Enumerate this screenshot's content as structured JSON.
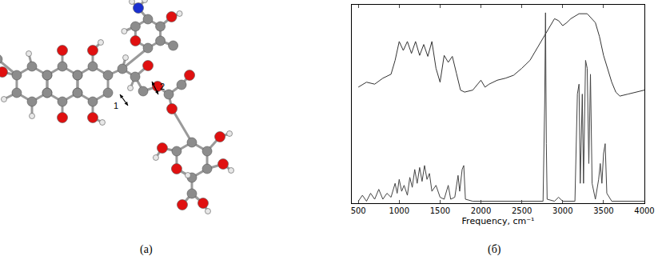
{
  "chart_data": {
    "type": "line",
    "x_label": "Frequency, cm⁻¹",
    "xlim": [
      420,
      4000
    ],
    "xticks": [
      500,
      1000,
      1500,
      2000,
      2500,
      3000,
      3500,
      4000
    ],
    "ylim": [
      0,
      1
    ],
    "grid": false,
    "tick_labels": "x",
    "series": [
      {
        "color": "#333333",
        "x": [
          500,
          600,
          700,
          800,
          900,
          950,
          1000,
          1050,
          1100,
          1150,
          1200,
          1250,
          1300,
          1350,
          1400,
          1450,
          1500,
          1550,
          1600,
          1650,
          1700,
          1750,
          1800,
          1900,
          2000,
          2050,
          2100,
          2200,
          2300,
          2400,
          2500,
          2600,
          2700,
          2800,
          2900,
          2950,
          3000,
          3050,
          3100,
          3200,
          3300,
          3400,
          3450,
          3500,
          3600,
          3650,
          3700,
          3800,
          3900,
          4000
        ],
        "values": [
          0.585,
          0.61,
          0.6,
          0.63,
          0.65,
          0.72,
          0.815,
          0.77,
          0.815,
          0.755,
          0.815,
          0.745,
          0.8,
          0.74,
          0.815,
          0.68,
          0.61,
          0.745,
          0.71,
          0.74,
          0.655,
          0.57,
          0.56,
          0.57,
          0.62,
          0.585,
          0.6,
          0.62,
          0.63,
          0.645,
          0.68,
          0.72,
          0.79,
          0.86,
          0.93,
          0.92,
          0.895,
          0.91,
          0.93,
          0.955,
          0.955,
          0.91,
          0.84,
          0.745,
          0.61,
          0.56,
          0.54,
          0.55,
          0.56,
          0.57
        ]
      },
      {
        "color": "#444444",
        "x": [
          500,
          550,
          600,
          650,
          700,
          750,
          800,
          850,
          900,
          950,
          975,
          1000,
          1030,
          1060,
          1100,
          1130,
          1160,
          1190,
          1220,
          1250,
          1280,
          1310,
          1340,
          1370,
          1400,
          1450,
          1500,
          1550,
          1600,
          1630,
          1680,
          1720,
          1740,
          1770,
          1790,
          1810,
          1900,
          2000,
          2500,
          2760,
          2780,
          2790,
          2800,
          2810,
          2900,
          2950,
          3000,
          3150,
          3180,
          3200,
          3215,
          3240,
          3255,
          3280,
          3300,
          3320,
          3340,
          3360,
          3400,
          3440,
          3460,
          3480,
          3500,
          3520,
          3540,
          3600,
          4000
        ],
        "values": [
          0.01,
          0.04,
          0.01,
          0.05,
          0.02,
          0.07,
          0.02,
          0.05,
          0.03,
          0.1,
          0.05,
          0.12,
          0.06,
          0.09,
          0.04,
          0.13,
          0.08,
          0.17,
          0.1,
          0.18,
          0.11,
          0.19,
          0.12,
          0.15,
          0.06,
          0.09,
          0.03,
          0.02,
          0.09,
          0.02,
          0.03,
          0.14,
          0.06,
          0.17,
          0.19,
          0.02,
          0.01,
          0.01,
          0.01,
          0.01,
          0.5,
          0.96,
          0.3,
          0.02,
          0.01,
          0.03,
          0.01,
          0.01,
          0.55,
          0.6,
          0.1,
          0.55,
          0.1,
          0.72,
          0.68,
          0.2,
          0.65,
          0.1,
          0.02,
          0.12,
          0.2,
          0.1,
          0.25,
          0.3,
          0.05,
          0.01,
          0.01
        ]
      }
    ]
  },
  "panel_labels": [
    "(a)",
    "(б)"
  ],
  "diagram": {
    "arrow_labels": [
      "1",
      "2"
    ]
  }
}
